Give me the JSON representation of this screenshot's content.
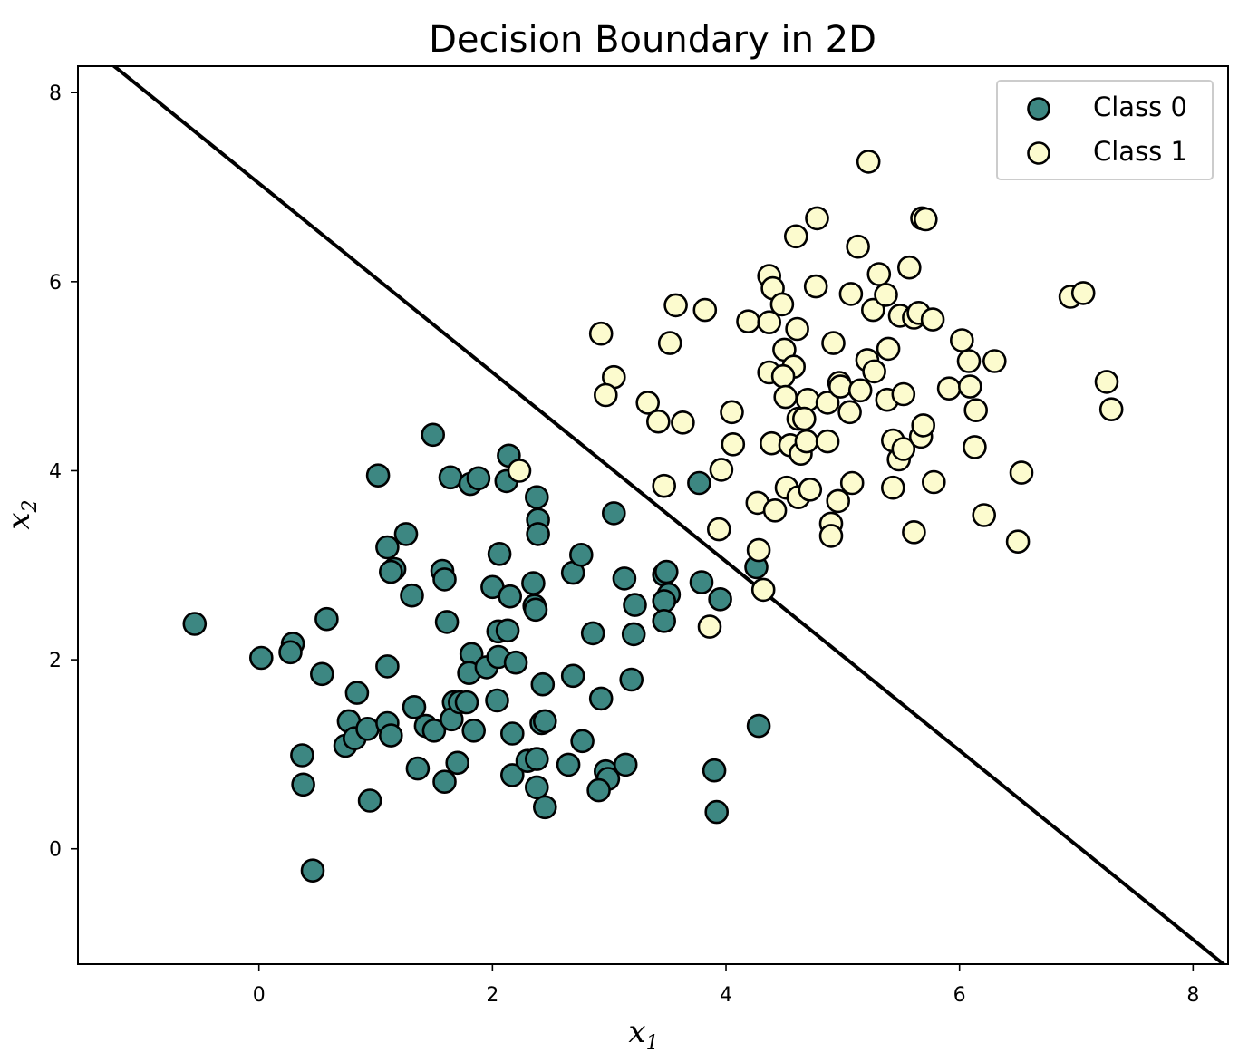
{
  "chart_data": {
    "type": "scatter",
    "title": "Decision Boundary in 2D",
    "xlabel": {
      "main": "x",
      "sub": "1"
    },
    "ylabel": {
      "main": "x",
      "sub": "2"
    },
    "xlim": [
      -1.55,
      8.3
    ],
    "ylim": [
      -1.22,
      8.28
    ],
    "xticks": [
      0,
      2,
      4,
      6,
      8
    ],
    "yticks": [
      0,
      2,
      4,
      6,
      8
    ],
    "xtick_labels": [
      "0",
      "2",
      "4",
      "6",
      "8"
    ],
    "ytick_labels": [
      "0",
      "2",
      "4",
      "6",
      "8"
    ],
    "legend_position": "upper right",
    "grid": false,
    "colors": {
      "class0": "#3d8782",
      "class1": "#fcfbce",
      "edge": "#000000",
      "boundary": "#000000"
    },
    "decision_boundary": {
      "x": [
        -1.55,
        8.3
      ],
      "y": [
        8.59,
        -1.26
      ]
    },
    "series": [
      {
        "name": "Class 0",
        "points": [
          [
            -0.55,
            2.38
          ],
          [
            0.02,
            2.02
          ],
          [
            0.29,
            2.17
          ],
          [
            0.27,
            2.08
          ],
          [
            0.58,
            2.43
          ],
          [
            0.54,
            1.85
          ],
          [
            0.37,
            0.99
          ],
          [
            0.38,
            0.68
          ],
          [
            0.46,
            -0.23
          ],
          [
            0.84,
            1.65
          ],
          [
            0.77,
            1.35
          ],
          [
            0.74,
            1.09
          ],
          [
            0.82,
            1.17
          ],
          [
            0.93,
            1.27
          ],
          [
            0.95,
            0.51
          ],
          [
            1.02,
            3.95
          ],
          [
            1.1,
            3.19
          ],
          [
            1.16,
            2.96
          ],
          [
            1.13,
            2.93
          ],
          [
            1.26,
            3.33
          ],
          [
            1.1,
            1.93
          ],
          [
            1.1,
            1.33
          ],
          [
            1.13,
            1.2
          ],
          [
            1.31,
            2.68
          ],
          [
            1.33,
            1.5
          ],
          [
            1.43,
            1.3
          ],
          [
            1.5,
            1.25
          ],
          [
            1.36,
            0.85
          ],
          [
            1.49,
            4.38
          ],
          [
            1.64,
            3.93
          ],
          [
            1.57,
            2.94
          ],
          [
            1.59,
            2.85
          ],
          [
            1.61,
            2.4
          ],
          [
            1.67,
            1.55
          ],
          [
            1.65,
            1.37
          ],
          [
            1.59,
            0.71
          ],
          [
            1.72,
            1.55
          ],
          [
            1.78,
            1.55
          ],
          [
            1.7,
            0.91
          ],
          [
            1.81,
            3.86
          ],
          [
            1.88,
            3.92
          ],
          [
            1.82,
            2.06
          ],
          [
            1.8,
            1.86
          ],
          [
            1.84,
            1.25
          ],
          [
            1.95,
            1.92
          ],
          [
            2.0,
            2.77
          ],
          [
            2.05,
            2.3
          ],
          [
            2.05,
            2.03
          ],
          [
            2.04,
            1.57
          ],
          [
            2.06,
            3.12
          ],
          [
            2.14,
            4.16
          ],
          [
            2.12,
            3.89
          ],
          [
            2.13,
            2.31
          ],
          [
            2.15,
            2.67
          ],
          [
            2.2,
            1.97
          ],
          [
            2.17,
            1.22
          ],
          [
            2.17,
            0.78
          ],
          [
            2.38,
            3.72
          ],
          [
            2.35,
            2.81
          ],
          [
            2.36,
            2.57
          ],
          [
            2.37,
            2.53
          ],
          [
            2.39,
            3.48
          ],
          [
            2.39,
            3.33
          ],
          [
            2.3,
            0.93
          ],
          [
            2.38,
            0.95
          ],
          [
            2.38,
            0.65
          ],
          [
            2.42,
            1.33
          ],
          [
            2.45,
            1.35
          ],
          [
            2.43,
            1.74
          ],
          [
            2.45,
            0.44
          ],
          [
            2.69,
            2.92
          ],
          [
            2.76,
            3.11
          ],
          [
            2.69,
            1.83
          ],
          [
            2.65,
            0.89
          ],
          [
            2.77,
            1.14
          ],
          [
            2.86,
            2.28
          ],
          [
            2.93,
            1.59
          ],
          [
            2.97,
            0.82
          ],
          [
            2.99,
            0.74
          ],
          [
            2.91,
            0.62
          ],
          [
            3.04,
            3.55
          ],
          [
            3.13,
            2.86
          ],
          [
            3.19,
            1.79
          ],
          [
            3.14,
            0.89
          ],
          [
            3.22,
            2.58
          ],
          [
            3.21,
            2.27
          ],
          [
            3.47,
            2.9
          ],
          [
            3.49,
            2.93
          ],
          [
            3.51,
            2.69
          ],
          [
            3.47,
            2.62
          ],
          [
            3.47,
            2.41
          ],
          [
            3.77,
            3.87
          ],
          [
            3.79,
            2.82
          ],
          [
            3.9,
            0.83
          ],
          [
            3.92,
            0.39
          ],
          [
            3.95,
            2.64
          ],
          [
            4.26,
            2.98
          ],
          [
            4.28,
            1.3
          ]
        ]
      },
      {
        "name": "Class 1",
        "points": [
          [
            2.23,
            4.0
          ],
          [
            2.93,
            5.45
          ],
          [
            3.04,
            4.99
          ],
          [
            2.97,
            4.8
          ],
          [
            3.33,
            4.72
          ],
          [
            3.42,
            4.52
          ],
          [
            3.47,
            3.84
          ],
          [
            3.52,
            5.35
          ],
          [
            3.57,
            5.75
          ],
          [
            3.63,
            4.51
          ],
          [
            3.82,
            5.7
          ],
          [
            3.86,
            2.35
          ],
          [
            3.94,
            3.38
          ],
          [
            3.96,
            4.01
          ],
          [
            4.05,
            4.62
          ],
          [
            4.06,
            4.28
          ],
          [
            4.19,
            5.58
          ],
          [
            4.27,
            3.66
          ],
          [
            4.28,
            3.16
          ],
          [
            4.32,
            2.74
          ],
          [
            4.37,
            6.06
          ],
          [
            4.4,
            5.93
          ],
          [
            4.48,
            5.76
          ],
          [
            4.37,
            5.57
          ],
          [
            4.37,
            5.04
          ],
          [
            4.39,
            4.29
          ],
          [
            4.42,
            3.58
          ],
          [
            4.5,
            5.28
          ],
          [
            4.58,
            5.1
          ],
          [
            4.49,
            5.0
          ],
          [
            4.51,
            4.78
          ],
          [
            4.55,
            4.27
          ],
          [
            4.52,
            3.82
          ],
          [
            4.6,
            6.48
          ],
          [
            4.61,
            5.5
          ],
          [
            4.62,
            4.55
          ],
          [
            4.64,
            4.18
          ],
          [
            4.62,
            3.72
          ],
          [
            4.7,
            4.75
          ],
          [
            4.67,
            4.55
          ],
          [
            4.69,
            4.31
          ],
          [
            4.72,
            3.8
          ],
          [
            4.78,
            6.67
          ],
          [
            4.77,
            5.95
          ],
          [
            4.87,
            4.72
          ],
          [
            4.87,
            4.31
          ],
          [
            4.9,
            3.44
          ],
          [
            4.9,
            3.31
          ],
          [
            4.92,
            5.35
          ],
          [
            4.97,
            4.93
          ],
          [
            4.98,
            4.89
          ],
          [
            4.96,
            3.68
          ],
          [
            5.07,
            5.87
          ],
          [
            5.06,
            4.62
          ],
          [
            5.08,
            3.87
          ],
          [
            5.13,
            6.37
          ],
          [
            5.15,
            4.85
          ],
          [
            5.22,
            7.27
          ],
          [
            5.21,
            5.17
          ],
          [
            5.26,
            5.7
          ],
          [
            5.27,
            5.05
          ],
          [
            5.31,
            6.08
          ],
          [
            5.37,
            5.86
          ],
          [
            5.39,
            5.29
          ],
          [
            5.38,
            4.75
          ],
          [
            5.43,
            4.32
          ],
          [
            5.43,
            3.82
          ],
          [
            5.48,
            4.12
          ],
          [
            5.49,
            5.64
          ],
          [
            5.52,
            4.81
          ],
          [
            5.52,
            4.23
          ],
          [
            5.57,
            6.15
          ],
          [
            5.61,
            5.62
          ],
          [
            5.61,
            3.35
          ],
          [
            5.65,
            5.67
          ],
          [
            5.67,
            4.36
          ],
          [
            5.69,
            4.48
          ],
          [
            5.68,
            6.67
          ],
          [
            5.71,
            6.66
          ],
          [
            5.77,
            5.6
          ],
          [
            5.78,
            3.88
          ],
          [
            5.91,
            4.87
          ],
          [
            6.02,
            5.38
          ],
          [
            6.08,
            5.16
          ],
          [
            6.09,
            4.89
          ],
          [
            6.14,
            4.64
          ],
          [
            6.13,
            4.25
          ],
          [
            6.21,
            3.53
          ],
          [
            6.3,
            5.16
          ],
          [
            6.5,
            3.25
          ],
          [
            6.53,
            3.98
          ],
          [
            6.95,
            5.84
          ],
          [
            7.06,
            5.88
          ],
          [
            7.26,
            4.94
          ],
          [
            7.3,
            4.65
          ]
        ]
      }
    ]
  }
}
